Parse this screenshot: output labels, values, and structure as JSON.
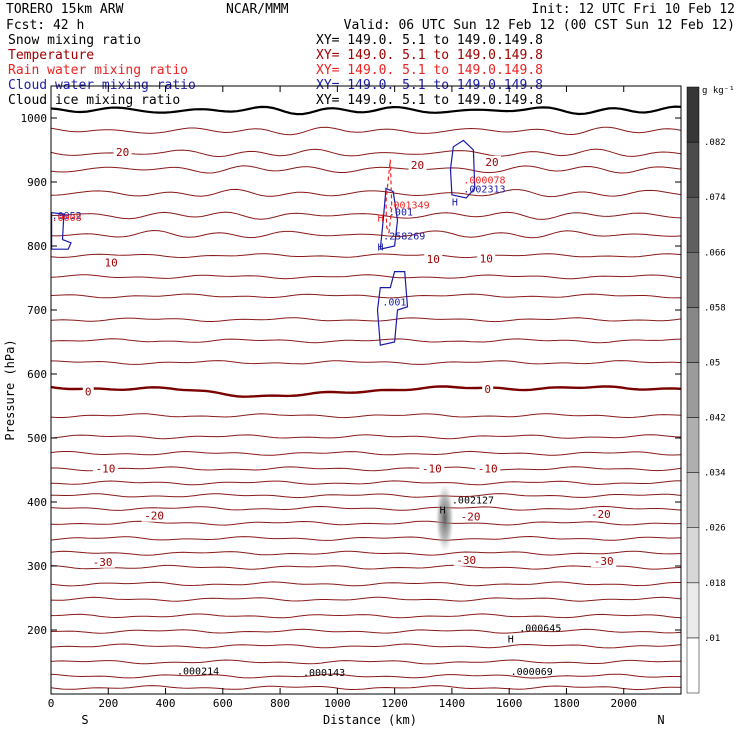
{
  "header": {
    "model": "TORERO  15km ARW",
    "center": "NCAR/MMM",
    "init": "Init: 12 UTC Fri 10 Feb 12",
    "forecast": "Fcst:   42 h",
    "valid": "Valid: 06 UTC Sun 12 Feb 12 (00 CST Sun 12 Feb 12)"
  },
  "fields": [
    {
      "name": "Snow mixing ratio",
      "xy": "XY= 149.0.  5.1 to 149.0.149.8",
      "color": "#000000"
    },
    {
      "name": "Temperature",
      "xy": "XY= 149.0.  5.1 to 149.0.149.8",
      "color": "#a00000"
    },
    {
      "name": "Rain water mixing ratio",
      "xy": "XY= 149.0.  5.1 to 149.0.149.8",
      "color": "#ee2222"
    },
    {
      "name": "Cloud water mixing ratio",
      "xy": "XY= 149.0.  5.1 to 149.0.149.8",
      "color": "#1a1aaa"
    },
    {
      "name": "Cloud ice mixing ratio",
      "xy": "XY= 149.0.  5.1 to 149.0.149.8",
      "color": "#000000"
    }
  ],
  "chart_data": {
    "type": "cross-section",
    "xlabel": "Distance (km)",
    "ylabel": "Pressure (hPa)",
    "xlim": [
      0,
      2200
    ],
    "ylim": [
      1050,
      100
    ],
    "x_ticks": [
      0,
      200,
      400,
      600,
      800,
      1000,
      1200,
      1400,
      1600,
      1800,
      2000
    ],
    "y_ticks": [
      200,
      300,
      400,
      500,
      600,
      700,
      800,
      900,
      1000
    ],
    "left_end": "S",
    "right_end": "N",
    "temperature_levels": [
      {
        "p": 1012,
        "label": ""
      },
      {
        "p": 980,
        "label": ""
      },
      {
        "p": 945,
        "label": "20"
      },
      {
        "p": 920,
        "label": "20"
      },
      {
        "p": 882,
        "label": ""
      },
      {
        "p": 848,
        "label": ""
      },
      {
        "p": 818,
        "label": ""
      },
      {
        "p": 785,
        "label": ""
      },
      {
        "p": 752,
        "label": ""
      },
      {
        "p": 722,
        "label": "10"
      },
      {
        "p": 685,
        "label": ""
      },
      {
        "p": 652,
        "label": ""
      },
      {
        "p": 618,
        "label": ""
      },
      {
        "p": 578,
        "label": "0"
      },
      {
        "p": 535,
        "label": ""
      },
      {
        "p": 502,
        "label": ""
      },
      {
        "p": 476,
        "label": ""
      },
      {
        "p": 452,
        "label": "-10"
      },
      {
        "p": 430,
        "label": ""
      },
      {
        "p": 410,
        "label": ""
      },
      {
        "p": 390,
        "label": ""
      },
      {
        "p": 367,
        "label": "-20"
      },
      {
        "p": 343,
        "label": ""
      },
      {
        "p": 320,
        "label": ""
      },
      {
        "p": 298,
        "label": "-30"
      },
      {
        "p": 272,
        "label": ""
      },
      {
        "p": 248,
        "label": ""
      },
      {
        "p": 222,
        "label": ""
      },
      {
        "p": 198,
        "label": ""
      },
      {
        "p": 175,
        "label": ""
      },
      {
        "p": 150,
        "label": ""
      },
      {
        "p": 128,
        "label": ""
      },
      {
        "p": 110,
        "label": ""
      }
    ],
    "contour_labels": [
      {
        "x": 180,
        "p": 305,
        "text": "-30",
        "color": "#a00000"
      },
      {
        "x": 1450,
        "p": 308,
        "text": "-30",
        "color": "#a00000"
      },
      {
        "x": 1930,
        "p": 306,
        "text": "-30",
        "color": "#a00000"
      },
      {
        "x": 360,
        "p": 377,
        "text": "-20",
        "color": "#a00000"
      },
      {
        "x": 1465,
        "p": 376,
        "text": "-20",
        "color": "#a00000"
      },
      {
        "x": 1920,
        "p": 380,
        "text": "-20",
        "color": "#a00000"
      },
      {
        "x": 190,
        "p": 451,
        "text": "-10",
        "color": "#a00000"
      },
      {
        "x": 1330,
        "p": 451,
        "text": "-10",
        "color": "#a00000"
      },
      {
        "x": 1525,
        "p": 451,
        "text": "-10",
        "color": "#a00000"
      },
      {
        "x": 130,
        "p": 571,
        "text": "0",
        "color": "#a00000"
      },
      {
        "x": 1525,
        "p": 575,
        "text": "0",
        "color": "#a00000"
      },
      {
        "x": 210,
        "p": 773,
        "text": "10",
        "color": "#a00000"
      },
      {
        "x": 1335,
        "p": 778,
        "text": "10",
        "color": "#a00000"
      },
      {
        "x": 1520,
        "p": 779,
        "text": "10",
        "color": "#a00000"
      },
      {
        "x": 250,
        "p": 945,
        "text": "20",
        "color": "#a00000"
      },
      {
        "x": 1280,
        "p": 925,
        "text": "20",
        "color": "#a00000"
      },
      {
        "x": 1540,
        "p": 930,
        "text": "20",
        "color": "#a00000"
      }
    ],
    "annotations": [
      {
        "x": 440,
        "p": 135,
        "text": ".000214",
        "color": "#000000"
      },
      {
        "x": 880,
        "p": 133,
        "text": ".000143",
        "color": "#000000"
      },
      {
        "x": 1605,
        "p": 134,
        "text": ".000069",
        "color": "#000000"
      },
      {
        "x": 1595,
        "p": 185,
        "text": "H",
        "color": "#000000"
      },
      {
        "x": 1635,
        "p": 202,
        "text": ".000645",
        "color": "#000000"
      },
      {
        "x": 1357,
        "p": 387,
        "text": "H",
        "color": "#000000"
      },
      {
        "x": 1400,
        "p": 402,
        "text": ".002127",
        "color": "#000000"
      },
      {
        "x": 1157,
        "p": 712,
        "text": ".001",
        "color": "#1a1aaa"
      },
      {
        "x": 1140,
        "p": 798,
        "text": "H",
        "color": "#1a1aaa"
      },
      {
        "x": 1160,
        "p": 815,
        "text": ".258269",
        "color": "#1a1aaa"
      },
      {
        "x": 1140,
        "p": 843,
        "text": "H",
        "color": "#ee2222"
      },
      {
        "x": 1180,
        "p": 852,
        "text": ".001",
        "color": "#1a1aaa"
      },
      {
        "x": 1175,
        "p": 863,
        "text": ".001349",
        "color": "#ee2222"
      },
      {
        "x": 1400,
        "p": 868,
        "text": "H",
        "color": "#1a1aaa"
      },
      {
        "x": 1440,
        "p": 888,
        "text": ".002313",
        "color": "#1a1aaa"
      },
      {
        "x": 1440,
        "p": 902,
        "text": ".000078",
        "color": "#ee2222"
      },
      {
        "x": 2,
        "p": 847,
        "text": ".0952",
        "color": "#1a1aaa"
      },
      {
        "x": 2,
        "p": 844,
        "text": ".0008",
        "color": "#ee2222"
      }
    ],
    "colorbar": {
      "unit": "g kg⁻¹",
      "ticks": [
        ".01",
        ".018",
        ".026",
        ".034",
        ".042",
        ".05",
        ".058",
        ".066",
        ".074",
        ".082"
      ]
    }
  }
}
